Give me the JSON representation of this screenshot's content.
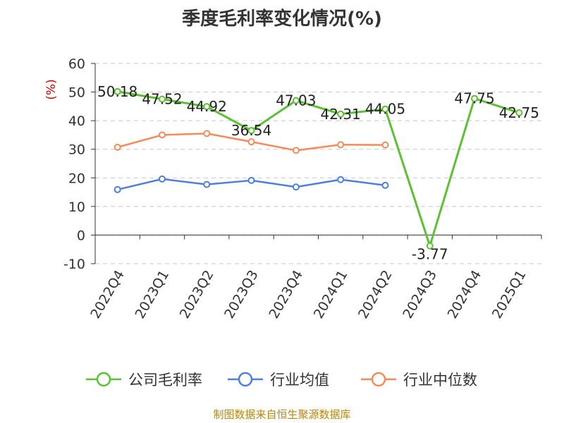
{
  "source_note": "制图数据来自恒生聚源数据库",
  "chart_data": {
    "type": "line",
    "title": "季度毛利率变化情况(%)",
    "ylabel": "(%)",
    "ylim": [
      -10,
      60
    ],
    "yticks": [
      -10,
      0,
      10,
      20,
      30,
      40,
      50,
      60
    ],
    "grid": true,
    "legend_position": "bottom",
    "categories": [
      "2022Q4",
      "2023Q1",
      "2023Q2",
      "2023Q3",
      "2023Q4",
      "2024Q1",
      "2024Q2",
      "2024Q3",
      "2024Q4",
      "2025Q1"
    ],
    "series": [
      {
        "name": "公司毛利率",
        "color": "#5cc132",
        "values": [
          50.18,
          47.52,
          44.92,
          36.54,
          47.03,
          42.31,
          44.05,
          -3.77,
          47.75,
          42.75
        ],
        "labels": [
          "50.18",
          "47.52",
          "44.92",
          "36.54",
          "47.03",
          "42.31",
          "44.05",
          "-3.77",
          "47.75",
          "42.75"
        ]
      },
      {
        "name": "行业均值",
        "color": "#4f7fdb",
        "values": [
          15.9,
          19.6,
          17.7,
          19.1,
          16.8,
          19.4,
          17.4,
          null,
          null,
          null
        ]
      },
      {
        "name": "行业中位数",
        "color": "#f48b5a",
        "values": [
          30.7,
          35.0,
          35.5,
          32.6,
          29.6,
          31.6,
          31.5,
          null,
          null,
          null
        ]
      }
    ]
  }
}
